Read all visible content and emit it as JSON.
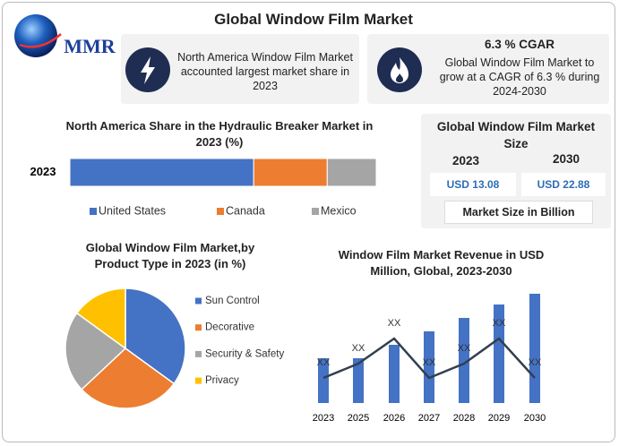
{
  "header": {
    "title": "Global Window Film Market",
    "logo": "MMR"
  },
  "cards": [
    {
      "text": "North America Window Film Market accounted largest market share in 2023"
    },
    {
      "title": "6.3 % CGAR",
      "text": "Global Window Film Market to grow at a CAGR of 6.3 % during 2024-2030"
    }
  ],
  "market_size": {
    "title": "Global Window Film Market Size",
    "years": [
      "2023",
      "2030"
    ],
    "values": [
      "USD 13.08",
      "USD 22.88"
    ],
    "unit_label": "Market Size in Billion"
  },
  "chart_data": [
    {
      "type": "hbar",
      "title": "North America Share in the Hydraulic Breaker Market in 2023 (%)",
      "categories": [
        "2023"
      ],
      "series": [
        {
          "name": "United States",
          "color": "#4472c4",
          "values": [
            60
          ]
        },
        {
          "name": "Canada",
          "color": "#ed7d31",
          "values": [
            24
          ]
        },
        {
          "name": "Mexico",
          "color": "#a5a5a5",
          "values": [
            16
          ]
        }
      ]
    },
    {
      "type": "pie",
      "title": "Global Window Film Market,by Product Type in 2023 (in %)",
      "categories": [
        "Sun Control",
        "Decorative",
        "Security & Safety",
        "Privacy"
      ],
      "values": [
        35,
        28,
        22,
        15
      ],
      "colors": [
        "#4472c4",
        "#ed7d31",
        "#a5a5a5",
        "#ffc000"
      ]
    },
    {
      "type": "combo",
      "title": "Window Film Market Revenue in USD Million, Global, 2023-2030",
      "categories": [
        "2023",
        "2025",
        "2026",
        "2027",
        "2028",
        "2029",
        "2030"
      ],
      "series": [
        {
          "type": "bar",
          "color": "#4472c4",
          "values": [
            50,
            50,
            65,
            80,
            95,
            110,
            122
          ]
        },
        {
          "type": "line",
          "color": "#333f50",
          "values": [
            28,
            44,
            72,
            28,
            44,
            72,
            28
          ],
          "value_labels": [
            "XX",
            "XX",
            "XX",
            "XX",
            "XX",
            "XX",
            "XX"
          ]
        }
      ]
    }
  ]
}
